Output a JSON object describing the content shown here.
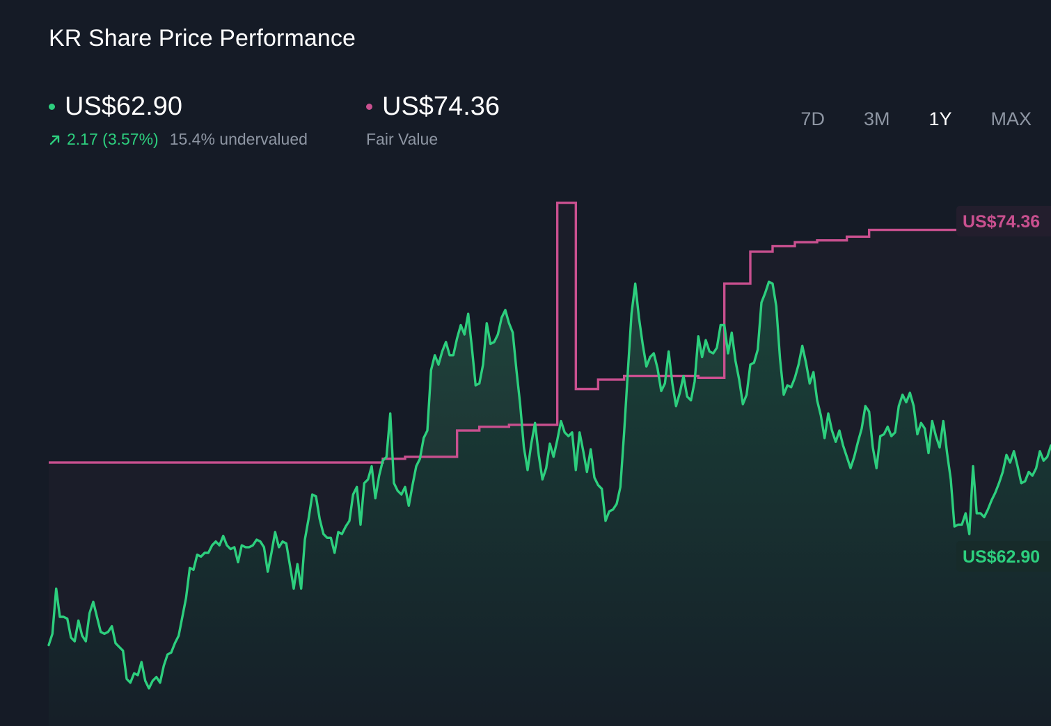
{
  "title": "KR Share Price Performance",
  "price_summary": {
    "value": "US$62.90",
    "change": "2.17 (3.57%)",
    "valuation": "15.4% undervalued",
    "color": "#2dcf7e"
  },
  "fair_value_summary": {
    "value": "US$74.36",
    "label": "Fair Value",
    "color": "#c9508f"
  },
  "tabs": [
    {
      "label": "7D",
      "active": false
    },
    {
      "label": "3M",
      "active": false
    },
    {
      "label": "1Y",
      "active": true
    },
    {
      "label": "MAX",
      "active": false
    }
  ],
  "chart_data": {
    "type": "line",
    "ylim": [
      48.0,
      78.0
    ],
    "grid": false,
    "series": [
      {
        "name": "Share Price",
        "color": "#2dcf7e",
        "end_label": "US$62.90",
        "values": [
          52.3,
          52.9,
          55.3,
          53.8,
          53.8,
          53.7,
          52.7,
          52.5,
          53.6,
          52.8,
          52.5,
          54.0,
          54.6,
          53.8,
          53.0,
          52.9,
          53.0,
          53.3,
          52.4,
          52.2,
          52.0,
          50.5,
          50.3,
          50.8,
          50.7,
          51.4,
          50.4,
          50.0,
          50.4,
          50.6,
          50.3,
          51.2,
          51.8,
          51.9,
          52.4,
          52.8,
          53.8,
          54.8,
          56.4,
          56.3,
          57.1,
          57.0,
          57.2,
          57.2,
          57.6,
          57.8,
          57.6,
          58.1,
          57.6,
          57.4,
          57.5,
          56.7,
          57.6,
          57.5,
          57.5,
          57.6,
          57.9,
          57.8,
          57.5,
          56.2,
          57.2,
          58.3,
          57.5,
          57.8,
          57.7,
          56.5,
          55.3,
          56.6,
          55.3,
          57.9,
          59.0,
          60.3,
          60.2,
          59.0,
          58.2,
          58.0,
          58.0,
          57.2,
          58.3,
          58.2,
          58.6,
          58.9,
          60.3,
          60.7,
          58.7,
          60.9,
          61.1,
          61.8,
          60.1,
          61.3,
          62.1,
          62.3,
          64.6,
          60.9,
          60.5,
          60.3,
          60.7,
          59.7,
          60.8,
          61.8,
          62.2,
          63.3,
          63.7,
          66.9,
          67.7,
          67.2,
          67.9,
          68.4,
          67.7,
          67.7,
          68.6,
          69.3,
          68.8,
          69.9,
          68.1,
          66.1,
          66.2,
          67.2,
          69.4,
          68.3,
          68.4,
          68.8,
          69.7,
          70.1,
          69.4,
          68.9,
          66.9,
          65.1,
          62.8,
          61.6,
          63.0,
          64.1,
          62.4,
          61.1,
          61.7,
          63.0,
          62.3,
          63.2,
          64.2,
          63.6,
          63.4,
          63.6,
          61.6,
          63.6,
          62.6,
          61.5,
          62.7,
          61.2,
          60.8,
          60.6,
          58.9,
          59.4,
          59.5,
          59.8,
          60.7,
          63.6,
          66.8,
          69.9,
          71.5,
          69.7,
          68.3,
          67.1,
          67.6,
          67.8,
          67.0,
          65.8,
          66.2,
          67.9,
          66.2,
          65.0,
          65.7,
          66.6,
          65.5,
          65.3,
          66.3,
          68.7,
          67.6,
          68.5,
          67.9,
          67.8,
          68.1,
          69.3,
          69.3,
          67.8,
          68.9,
          67.4,
          66.4,
          65.1,
          65.6,
          67.2,
          67.3,
          68.0,
          70.5,
          71.0,
          71.6,
          71.5,
          70.3,
          67.5,
          65.6,
          66.1,
          66.0,
          66.5,
          67.2,
          68.2,
          67.3,
          66.2,
          66.8,
          65.3,
          64.5,
          63.3,
          64.6,
          63.7,
          63.1,
          63.7,
          62.9,
          62.3,
          61.7,
          62.3,
          63.1,
          63.8,
          65.0,
          64.7,
          62.8,
          61.7,
          63.4,
          63.5,
          63.9,
          63.4,
          63.6,
          65.0,
          65.6,
          65.2,
          65.7,
          65.0,
          63.5,
          64.1,
          63.8,
          62.5,
          64.2,
          63.4,
          62.8,
          64.2,
          62.5,
          61.1,
          58.6,
          58.7,
          58.7,
          59.3,
          58.2,
          61.8,
          59.3,
          59.3,
          59.1,
          59.5,
          60.0,
          60.4,
          60.9,
          61.5,
          62.4,
          62.0,
          62.6,
          61.8,
          60.9,
          61.0,
          61.5,
          61.3,
          61.7,
          62.6,
          62.1,
          62.3,
          62.9
        ]
      },
      {
        "name": "Fair Value",
        "color": "#c9508f",
        "end_label": "US$74.36",
        "values": [
          62.0,
          62.0,
          62.0,
          62.0,
          62.0,
          62.0,
          62.0,
          62.0,
          62.0,
          62.0,
          62.0,
          62.0,
          62.0,
          62.0,
          62.0,
          62.0,
          62.0,
          62.0,
          62.0,
          62.0,
          62.0,
          62.0,
          62.0,
          62.0,
          62.0,
          62.0,
          62.0,
          62.0,
          62.0,
          62.0,
          62.0,
          62.0,
          62.0,
          62.0,
          62.0,
          62.0,
          62.0,
          62.0,
          62.0,
          62.0,
          62.0,
          62.0,
          62.0,
          62.0,
          62.0,
          62.0,
          62.0,
          62.0,
          62.0,
          62.0,
          62.0,
          62.0,
          62.0,
          62.0,
          62.0,
          62.0,
          62.0,
          62.0,
          62.0,
          62.0,
          62.0,
          62.0,
          62.0,
          62.0,
          62.0,
          62.0,
          62.0,
          62.0,
          62.0,
          62.0,
          62.0,
          62.0,
          62.0,
          62.0,
          62.0,
          62.0,
          62.0,
          62.0,
          62.0,
          62.0,
          62.0,
          62.0,
          62.0,
          62.0,
          62.0,
          62.0,
          62.0,
          62.0,
          62.0,
          62.0,
          62.2,
          62.2,
          62.2,
          62.2,
          62.2,
          62.2,
          62.3,
          62.3,
          62.3,
          62.3,
          62.3,
          62.3,
          62.3,
          62.3,
          62.3,
          62.3,
          62.3,
          62.3,
          62.3,
          62.3,
          63.7,
          63.7,
          63.7,
          63.7,
          63.7,
          63.7,
          63.9,
          63.9,
          63.9,
          63.9,
          63.9,
          63.9,
          63.9,
          63.9,
          64.0,
          64.0,
          64.0,
          64.0,
          64.0,
          64.0,
          64.0,
          64.0,
          64.0,
          64.0,
          64.0,
          64.0,
          64.0,
          75.8,
          75.8,
          75.8,
          75.8,
          75.8,
          65.9,
          65.9,
          65.9,
          65.9,
          65.9,
          65.9,
          66.4,
          66.4,
          66.4,
          66.4,
          66.4,
          66.4,
          66.4,
          66.6,
          66.6,
          66.6,
          66.6,
          66.6,
          66.6,
          66.6,
          66.6,
          66.6,
          66.6,
          66.6,
          66.6,
          66.6,
          66.6,
          66.6,
          66.6,
          66.6,
          66.6,
          66.6,
          66.6,
          66.5,
          66.5,
          66.5,
          66.5,
          66.5,
          66.5,
          66.5,
          71.5,
          71.5,
          71.5,
          71.5,
          71.5,
          71.5,
          71.5,
          73.2,
          73.2,
          73.2,
          73.2,
          73.2,
          73.2,
          73.5,
          73.5,
          73.5,
          73.5,
          73.5,
          73.5,
          73.7,
          73.7,
          73.7,
          73.7,
          73.7,
          73.7,
          73.8,
          73.8,
          73.8,
          73.8,
          73.8,
          73.8,
          73.8,
          73.8,
          74.0,
          74.0,
          74.0,
          74.0,
          74.0,
          74.0,
          74.36,
          74.36,
          74.36,
          74.36,
          74.36,
          74.36,
          74.36,
          74.36,
          74.36,
          74.36,
          74.36,
          74.36,
          74.36,
          74.36,
          74.36,
          74.36,
          74.36,
          74.36,
          74.36,
          74.36,
          74.36,
          74.36,
          74.36,
          74.36,
          74.36,
          74.36,
          74.36,
          74.36,
          74.36,
          74.36,
          74.36,
          74.36,
          74.36,
          74.36,
          74.36,
          74.36,
          74.36,
          74.36,
          74.36,
          74.36,
          74.36,
          74.36,
          74.36,
          74.36,
          74.36,
          74.36,
          74.36,
          74.36,
          74.36,
          74.36,
          74.36,
          74.36,
          74.36,
          74.36,
          74.36,
          74.36,
          74.36,
          74.36,
          74.36,
          74.36,
          74.36,
          74.36,
          74.36,
          74.36,
          74.36,
          74.36,
          74.36,
          74.36,
          74.36,
          74.36,
          74.36,
          74.36,
          74.36,
          74.36,
          74.36,
          74.36,
          74.36
        ]
      }
    ]
  }
}
